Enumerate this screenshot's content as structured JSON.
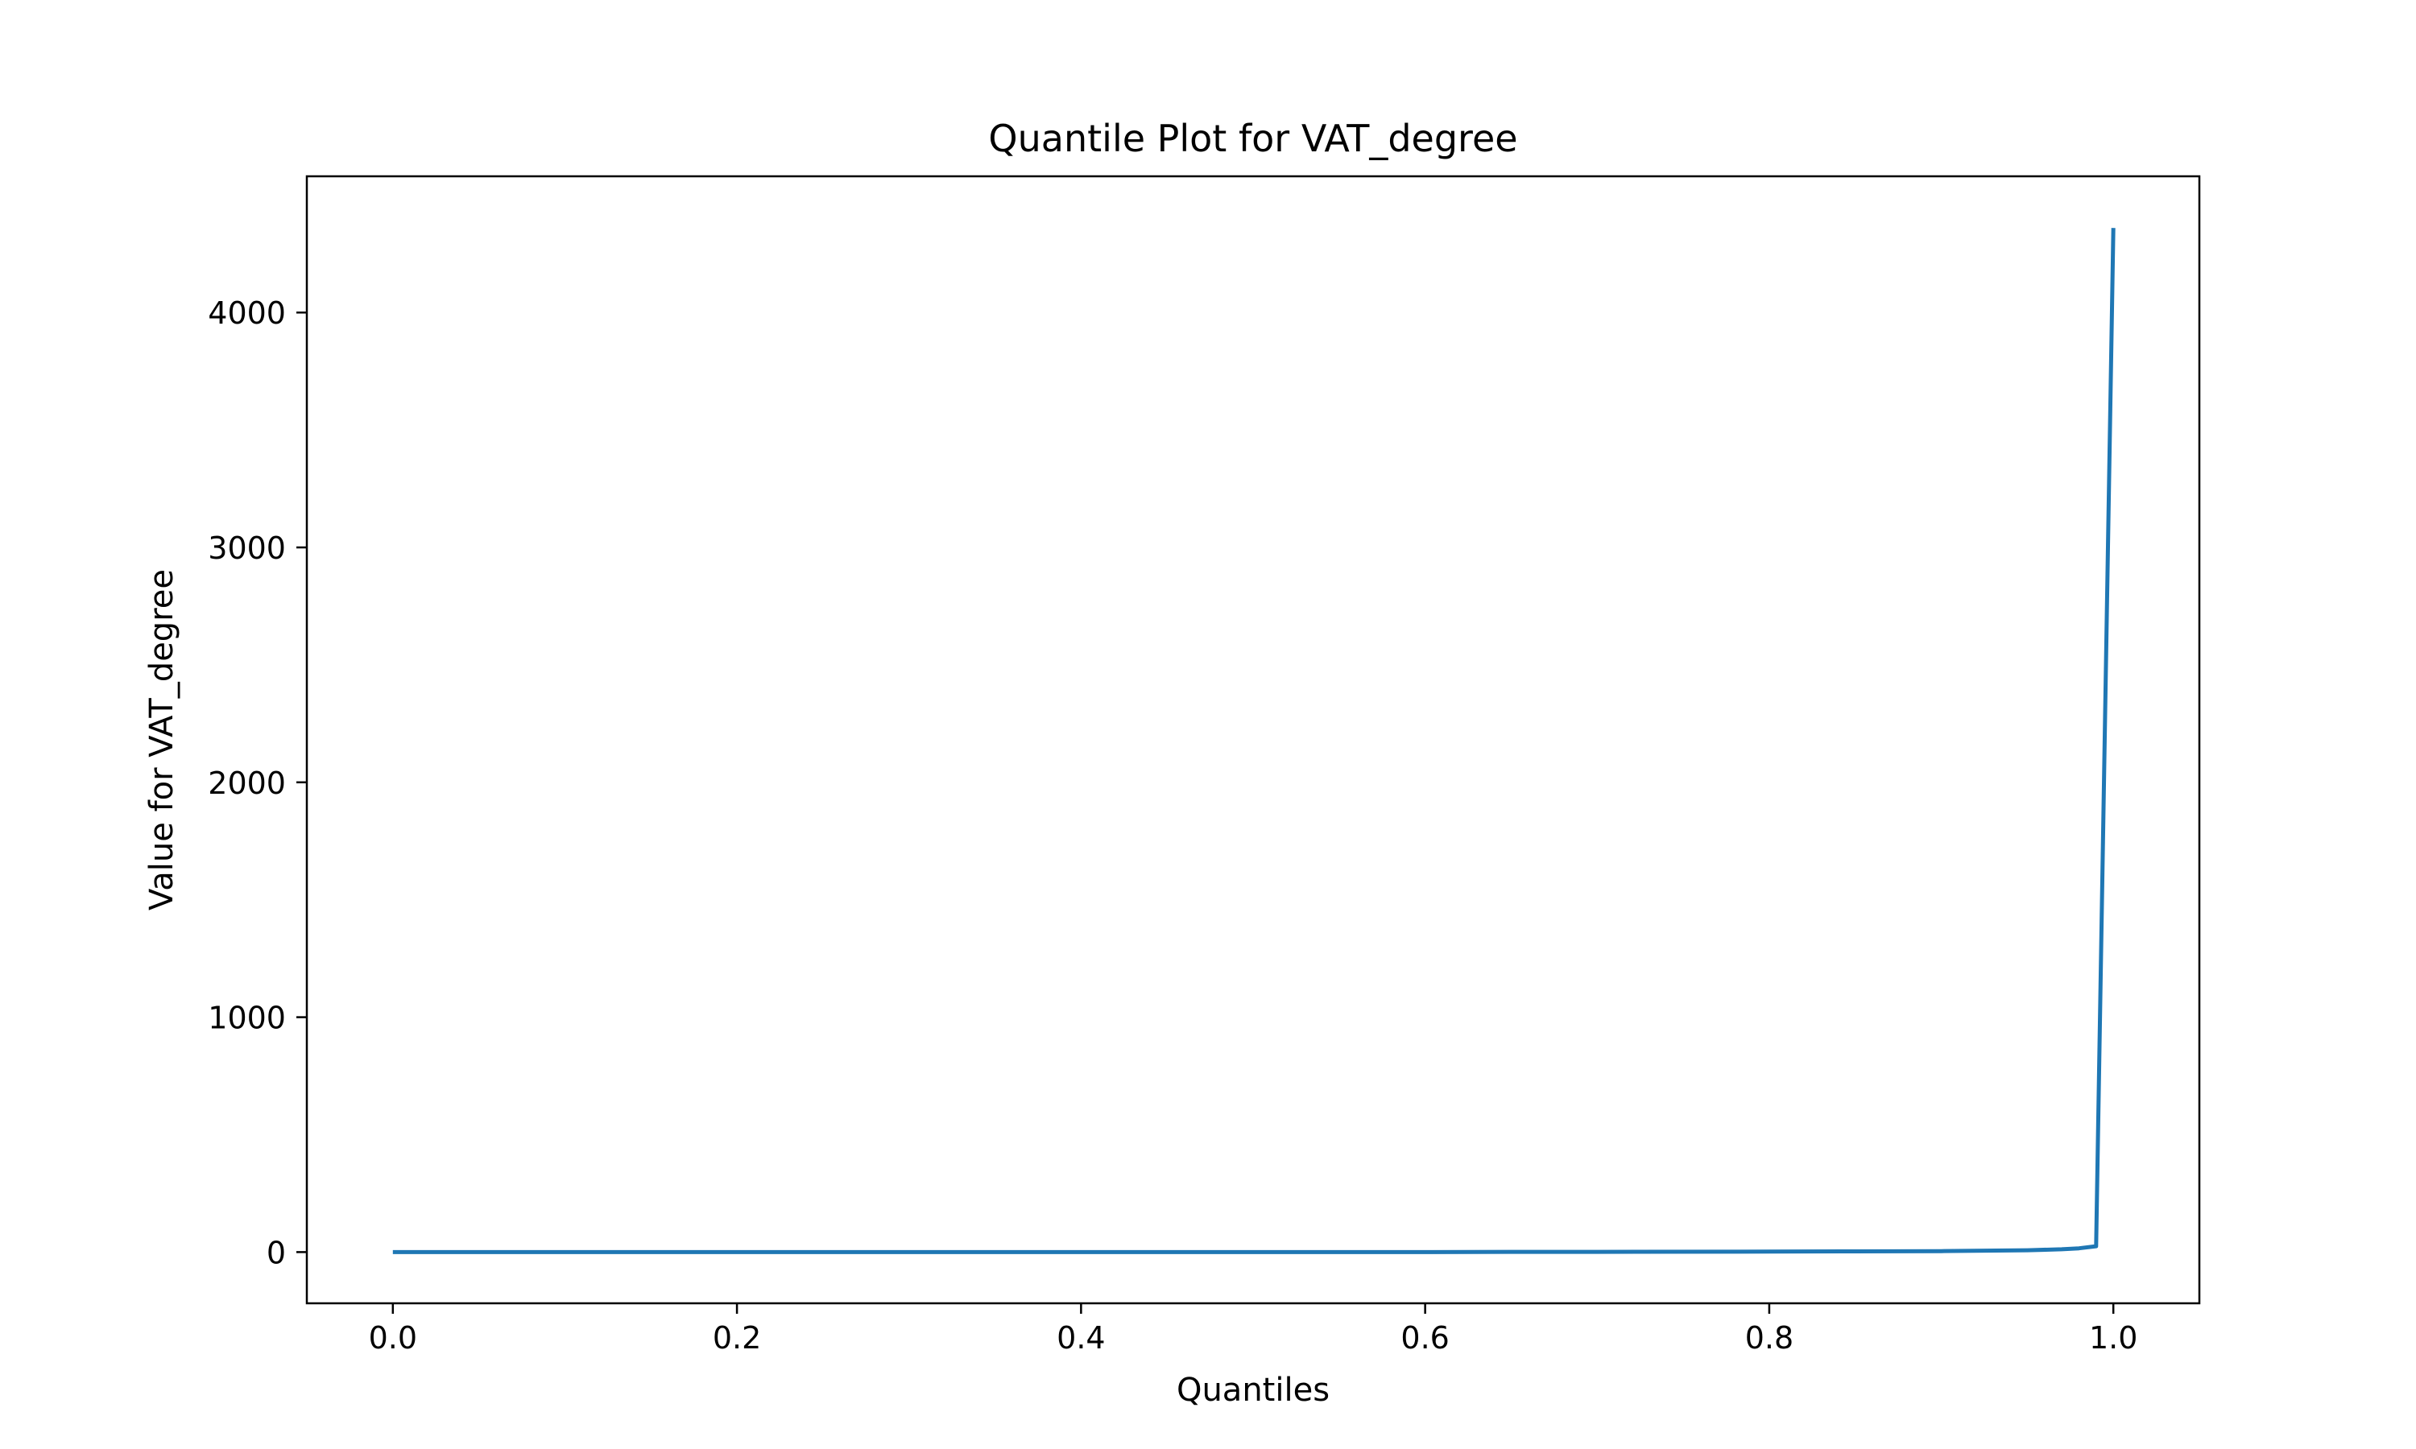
{
  "chart_data": {
    "type": "line",
    "title": "Quantile Plot for VAT_degree",
    "xlabel": "Quantiles",
    "ylabel": "Value for VAT_degree",
    "xlim": [
      -0.05,
      1.05
    ],
    "ylim": [
      -218,
      4580
    ],
    "xticks": [
      0.0,
      0.2,
      0.4,
      0.6,
      0.8,
      1.0
    ],
    "xtick_labels": [
      "0.0",
      "0.2",
      "0.4",
      "0.6",
      "0.8",
      "1.0"
    ],
    "yticks": [
      0,
      1000,
      2000,
      3000,
      4000
    ],
    "ytick_labels": [
      "0",
      "1000",
      "2000",
      "3000",
      "4000"
    ],
    "grid": false,
    "series": [
      {
        "name": "VAT_degree",
        "color": "#1f77b4",
        "x": [
          0.0,
          0.1,
          0.2,
          0.3,
          0.4,
          0.5,
          0.6,
          0.65,
          0.7,
          0.8,
          0.85,
          0.9,
          0.95,
          0.97,
          0.98,
          0.99,
          1.0
        ],
        "y": [
          0,
          0,
          0,
          0,
          0,
          0,
          0,
          1,
          1,
          2,
          3,
          4,
          8,
          12,
          16,
          25,
          4360
        ]
      }
    ]
  }
}
